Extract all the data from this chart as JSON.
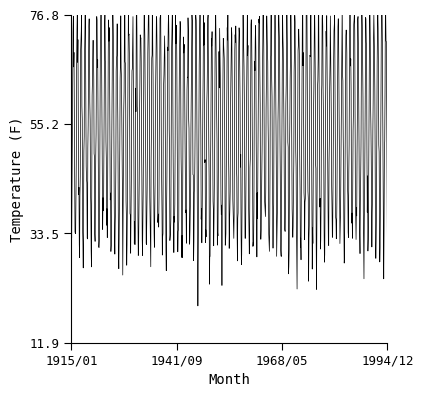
{
  "title": "",
  "xlabel": "Month",
  "ylabel": "Temperature (F)",
  "start_year": 1915,
  "start_month": 1,
  "end_year": 1994,
  "end_month": 12,
  "ylim": [
    11.9,
    76.8
  ],
  "yticks": [
    11.9,
    33.5,
    55.2,
    76.8
  ],
  "xtick_labels": [
    "1915/01",
    "1941/09",
    "1968/05",
    "1994/12"
  ],
  "xtick_years": [
    1915,
    1941,
    1968,
    1994
  ],
  "xtick_months": [
    1,
    9,
    5,
    12
  ],
  "mean_temp": 54.0,
  "amplitude": 22.5,
  "noise_std": 4.0,
  "line_color": "#000000",
  "line_width": 0.5,
  "bg_color": "#ffffff"
}
